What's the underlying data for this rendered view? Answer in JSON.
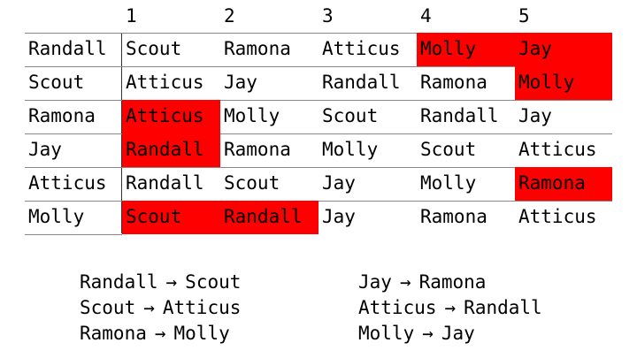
{
  "headers": [
    "1",
    "2",
    "3",
    "4",
    "5"
  ],
  "rows": [
    {
      "name": "Randall",
      "prefs": [
        "Scout",
        "Ramona",
        "Atticus",
        "Molly",
        "Jay"
      ],
      "highlight": [
        false,
        false,
        false,
        true,
        true
      ]
    },
    {
      "name": "Scout",
      "prefs": [
        "Atticus",
        "Jay",
        "Randall",
        "Ramona",
        "Molly"
      ],
      "highlight": [
        false,
        false,
        false,
        false,
        true
      ]
    },
    {
      "name": "Ramona",
      "prefs": [
        "Atticus",
        "Molly",
        "Scout",
        "Randall",
        "Jay"
      ],
      "highlight": [
        true,
        false,
        false,
        false,
        false
      ]
    },
    {
      "name": "Jay",
      "prefs": [
        "Randall",
        "Ramona",
        "Molly",
        "Scout",
        "Atticus"
      ],
      "highlight": [
        true,
        false,
        false,
        false,
        false
      ]
    },
    {
      "name": "Atticus",
      "prefs": [
        "Randall",
        "Scout",
        "Jay",
        "Molly",
        "Ramona"
      ],
      "highlight": [
        false,
        false,
        false,
        false,
        true
      ]
    },
    {
      "name": "Molly",
      "prefs": [
        "Scout",
        "Randall",
        "Jay",
        "Ramona",
        "Atticus"
      ],
      "highlight": [
        true,
        true,
        false,
        false,
        false
      ]
    }
  ],
  "arrow_symbol": "→",
  "pairings_left": [
    {
      "from": "Randall",
      "to": "Scout"
    },
    {
      "from": "Scout",
      "to": "Atticus"
    },
    {
      "from": "Ramona",
      "to": "Molly"
    }
  ],
  "pairings_right": [
    {
      "from": "Jay",
      "to": "Ramona"
    },
    {
      "from": "Atticus",
      "to": "Randall"
    },
    {
      "from": "Molly",
      "to": "Jay"
    }
  ],
  "colors": {
    "highlight": "#ff0000",
    "text": "#000000",
    "grid": "#888888"
  }
}
